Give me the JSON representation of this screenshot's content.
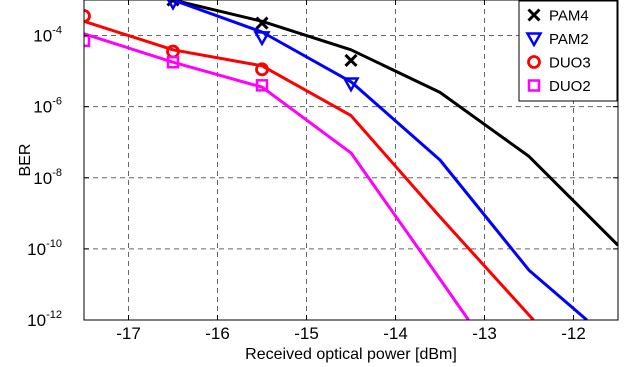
{
  "chart_data": {
    "type": "line",
    "title": "",
    "xlabel": "Received optical power [dBm]",
    "ylabel": "BER",
    "xlim": [
      -17.5,
      -11.5
    ],
    "ylim_exponent": [
      -12,
      -3
    ],
    "yscale": "log",
    "grid": true,
    "legend_position": "top-right",
    "x_ticks": [
      {
        "value": -17,
        "label": "-17"
      },
      {
        "value": -16,
        "label": "-16"
      },
      {
        "value": -15,
        "label": "-15"
      },
      {
        "value": -14,
        "label": "-14"
      },
      {
        "value": -13,
        "label": "-13"
      },
      {
        "value": -12,
        "label": "-12"
      }
    ],
    "y_ticks": [
      {
        "exp": -4,
        "base": "10",
        "sup": "-4"
      },
      {
        "exp": -6,
        "base": "10",
        "sup": "-6"
      },
      {
        "exp": -8,
        "base": "10",
        "sup": "-8"
      },
      {
        "exp": -10,
        "base": "10",
        "sup": "-10"
      },
      {
        "exp": -12,
        "base": "10",
        "sup": "-12"
      }
    ],
    "series": [
      {
        "name": "PAM4",
        "color": "#000000",
        "marker": "x",
        "line": [
          [
            -16.5,
            -3.0
          ],
          [
            -15.5,
            -3.6
          ],
          [
            -14.5,
            -4.4
          ],
          [
            -13.5,
            -5.6
          ],
          [
            -12.5,
            -7.4
          ],
          [
            -11.5,
            -9.9
          ]
        ],
        "points": [
          [
            -16.5,
            -3.0
          ],
          [
            -15.5,
            -3.65
          ],
          [
            -14.5,
            -4.7
          ]
        ]
      },
      {
        "name": "PAM2",
        "color": "#0000ff",
        "marker": "triangle-down",
        "line": [
          [
            -16.5,
            -3.0
          ],
          [
            -15.5,
            -3.9
          ],
          [
            -14.5,
            -5.3
          ],
          [
            -13.5,
            -7.5
          ],
          [
            -12.5,
            -10.6
          ],
          [
            -11.85,
            -12.0
          ]
        ],
        "points": [
          [
            -16.5,
            -3.05
          ],
          [
            -15.5,
            -4.05
          ],
          [
            -14.5,
            -5.35
          ]
        ]
      },
      {
        "name": "DUO3",
        "color": "#ff0000",
        "marker": "circle",
        "line": [
          [
            -17.5,
            -3.6
          ],
          [
            -16.5,
            -4.4
          ],
          [
            -15.5,
            -4.85
          ],
          [
            -14.5,
            -6.25
          ],
          [
            -13.5,
            -9.1
          ],
          [
            -12.45,
            -12.0
          ]
        ],
        "points": [
          [
            -17.5,
            -3.45
          ],
          [
            -16.5,
            -4.45
          ],
          [
            -15.5,
            -4.95
          ]
        ]
      },
      {
        "name": "DUO2",
        "color": "#ff00ff",
        "marker": "square",
        "line": [
          [
            -17.5,
            -3.95
          ],
          [
            -16.5,
            -4.75
          ],
          [
            -15.5,
            -5.45
          ],
          [
            -14.5,
            -7.3
          ],
          [
            -13.5,
            -10.85
          ],
          [
            -13.18,
            -12.0
          ]
        ],
        "points": [
          [
            -17.5,
            -4.15
          ],
          [
            -16.5,
            -4.75
          ],
          [
            -15.5,
            -5.4
          ]
        ]
      }
    ]
  }
}
